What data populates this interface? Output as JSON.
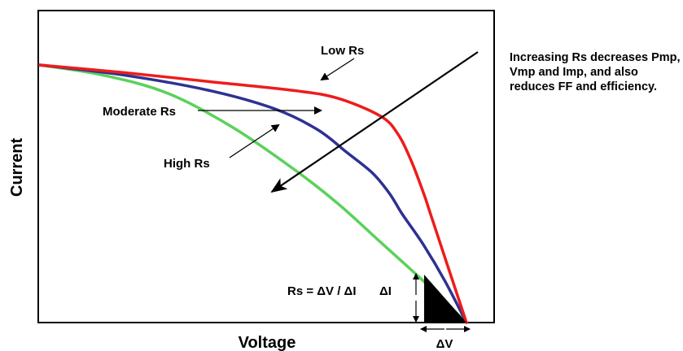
{
  "chart_data": {
    "type": "line",
    "title": "",
    "xlabel": "Voltage",
    "ylabel": "Current",
    "grid": false,
    "legend": "none",
    "axes_ticks": false,
    "xlim": [
      0,
      1
    ],
    "ylim": [
      0,
      1
    ],
    "series": [
      {
        "name": "Low Rs",
        "color": "#ee1c1c",
        "x": [
          0.0,
          0.2,
          0.4,
          0.6,
          0.7,
          0.8,
          0.84,
          0.87,
          0.9,
          0.92,
          1.0
        ],
        "y": [
          1.0,
          0.97,
          0.935,
          0.9,
          0.87,
          0.8,
          0.73,
          0.63,
          0.5,
          0.4,
          0.0
        ]
      },
      {
        "name": "Moderate Rs",
        "color": "#2e3192",
        "x": [
          0.0,
          0.2,
          0.4,
          0.55,
          0.65,
          0.72,
          0.78,
          0.82,
          0.85,
          0.9,
          0.95,
          1.0
        ],
        "y": [
          1.0,
          0.96,
          0.9,
          0.83,
          0.75,
          0.66,
          0.58,
          0.5,
          0.42,
          0.3,
          0.16,
          0.0
        ]
      },
      {
        "name": "High Rs",
        "color": "#5bd15b",
        "x": [
          0.0,
          0.15,
          0.3,
          0.45,
          0.6,
          0.7,
          0.8,
          0.9,
          0.95,
          1.0
        ],
        "y": [
          1.0,
          0.96,
          0.89,
          0.76,
          0.59,
          0.46,
          0.31,
          0.16,
          0.08,
          0.0
        ]
      }
    ],
    "annotations": {
      "low_rs": "Low Rs",
      "moderate_rs": "Moderate Rs",
      "high_rs": "High Rs",
      "formula": "Rs = ΔV / ΔI",
      "delta_i": "ΔI",
      "delta_v": "ΔV"
    },
    "side_note": "Increasing Rs decreases Pmp, Vmp and Imp, and also reduces FF and efficiency."
  }
}
